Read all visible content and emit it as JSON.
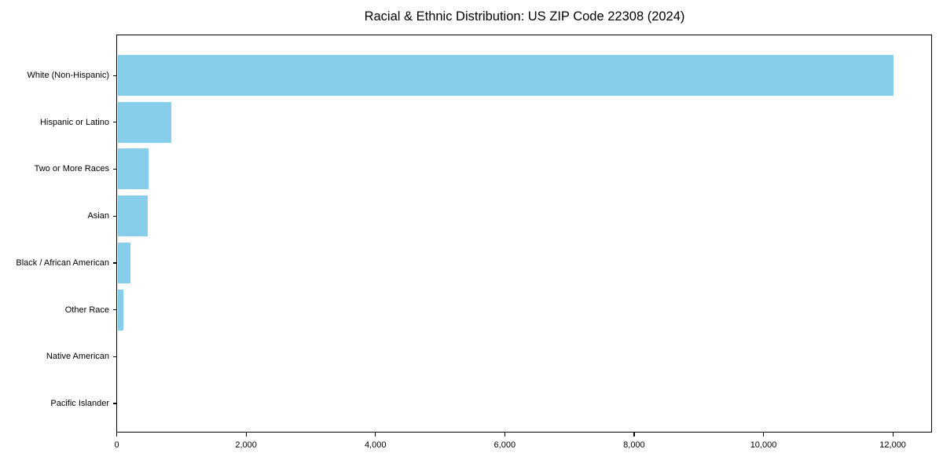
{
  "chart_data": {
    "type": "bar",
    "orientation": "horizontal",
    "title": "Racial & Ethnic Distribution: US ZIP Code 22308 (2024)",
    "categories": [
      "White (Non-Hispanic)",
      "Hispanic or Latino",
      "Two or More Races",
      "Asian",
      "Black / African American",
      "Other Race",
      "Native American",
      "Pacific Islander"
    ],
    "values": [
      12000,
      830,
      485,
      470,
      205,
      95,
      0,
      0
    ],
    "xlabel": "",
    "ylabel": "",
    "xlim": [
      0,
      12600
    ],
    "xticks": [
      0,
      2000,
      4000,
      6000,
      8000,
      10000,
      12000
    ],
    "xtick_labels": [
      "0",
      "2,000",
      "4,000",
      "6,000",
      "8,000",
      "10,000",
      "12,000"
    ],
    "bar_color": "#87CEEB",
    "axis_color": "#000000",
    "grid": false,
    "legend": null
  }
}
